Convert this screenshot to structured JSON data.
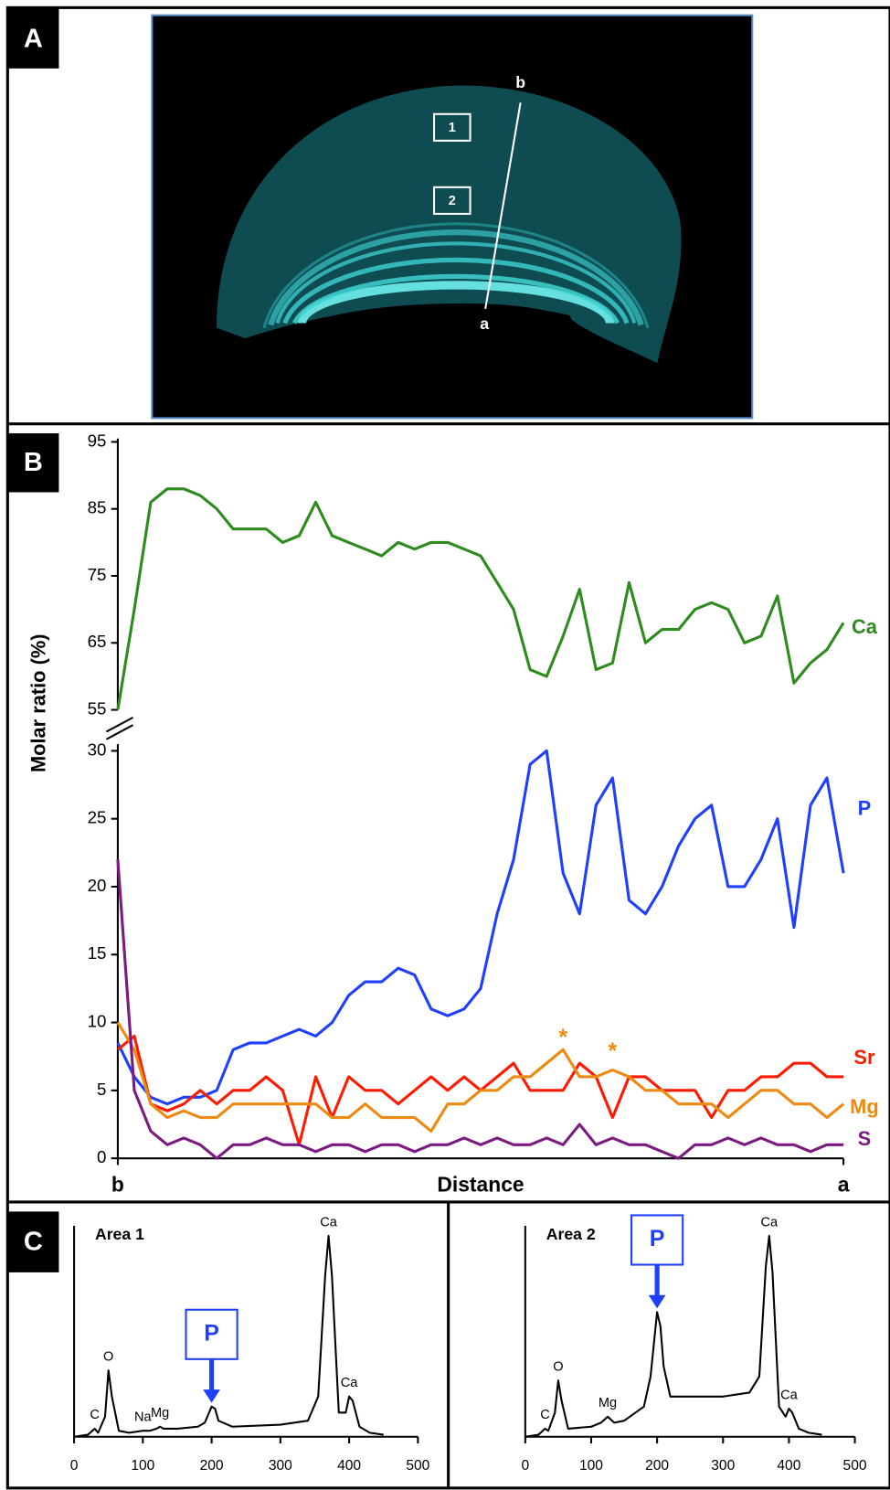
{
  "panel_labels": [
    "A",
    "B",
    "C"
  ],
  "panel_a": {
    "boxes": [
      "1",
      "2"
    ],
    "line_ends": [
      "b",
      "a"
    ]
  },
  "chart_data": [
    {
      "type": "line",
      "xlabel": "Distance",
      "ylabel": "Molar ratio (%)",
      "x": [
        0,
        1,
        2,
        3,
        4,
        5,
        6,
        7,
        8,
        9,
        10,
        11,
        12,
        13,
        14,
        15,
        16,
        17,
        18,
        19,
        20,
        21,
        22,
        23,
        24,
        25,
        26,
        27,
        28,
        29,
        30,
        31,
        32,
        33,
        34,
        35,
        36,
        37,
        38,
        39,
        40,
        41,
        42,
        43,
        44
      ],
      "xlim": [
        0,
        44
      ],
      "xticks": [
        {
          "value": 0,
          "label": "b"
        },
        {
          "value": 44,
          "label": "a"
        }
      ],
      "ylim": [
        0,
        30.5
      ],
      "yticks": [
        0,
        5,
        10,
        15,
        20,
        25,
        30
      ],
      "y2lim": [
        55,
        95.5
      ],
      "y2ticks": [
        55,
        65,
        75,
        85,
        95
      ],
      "series": [
        {
          "name": "Ca",
          "color": "#2e8b1e",
          "axis": "y2",
          "values": [
            55,
            70,
            86,
            88,
            88,
            87,
            85,
            82,
            82,
            82,
            80,
            81,
            86,
            81,
            80,
            79,
            78,
            80,
            79,
            80,
            80,
            79,
            78,
            74,
            70,
            61,
            60,
            66,
            73,
            61,
            62,
            74,
            65,
            67,
            67,
            70,
            71,
            70,
            65,
            66,
            72,
            59,
            62,
            64,
            68
          ]
        },
        {
          "name": "P",
          "color": "#1f3fff",
          "values": [
            8.5,
            6,
            4.5,
            4,
            4.5,
            4.5,
            5,
            8,
            8.5,
            8.5,
            9,
            9.5,
            9,
            10,
            12,
            13,
            13,
            14,
            13.5,
            11,
            10.5,
            11,
            12.5,
            18,
            22,
            29,
            30,
            21,
            18,
            26,
            28,
            19,
            18,
            20,
            23,
            25,
            26,
            20,
            20,
            22,
            25,
            17,
            26,
            28,
            21
          ]
        },
        {
          "name": "Sr",
          "color": "#ff1a00",
          "values": [
            8,
            9,
            4,
            3.5,
            4,
            5,
            4,
            5,
            5,
            6,
            5,
            1,
            6,
            3,
            6,
            5,
            5,
            4,
            5,
            6,
            5,
            6,
            5,
            6,
            7,
            5,
            5,
            5,
            7,
            6,
            3,
            6,
            6,
            5,
            5,
            5,
            3,
            5,
            5,
            6,
            6,
            7,
            7,
            6,
            6
          ]
        },
        {
          "name": "Mg",
          "color": "#ee8a10",
          "values": [
            10,
            8,
            4,
            3,
            3.5,
            3,
            3,
            4,
            4,
            4,
            4,
            4,
            4,
            3,
            3,
            4,
            3,
            3,
            3,
            2,
            4,
            4,
            5,
            5,
            6,
            6,
            7,
            8,
            6,
            6,
            6.5,
            6,
            5,
            5,
            4,
            4,
            4,
            3,
            4,
            5,
            5,
            4,
            4,
            3,
            4
          ]
        },
        {
          "name": "S",
          "color": "#7b1a80",
          "values": [
            22,
            5,
            2,
            1,
            1.5,
            1,
            0,
            1,
            1,
            1.5,
            1,
            1,
            0.5,
            1,
            1,
            0.5,
            1,
            1,
            0.5,
            1,
            1,
            1.5,
            1,
            1.5,
            1,
            1,
            1.5,
            1,
            2.5,
            1,
            1.5,
            1,
            1,
            0.5,
            0,
            1,
            1,
            1.5,
            1,
            1.5,
            1,
            1,
            0.5,
            1,
            1
          ]
        }
      ],
      "annotations": [
        {
          "text": "*",
          "x": 27,
          "y": 8.8,
          "color": "#ee8a10"
        },
        {
          "text": "*",
          "x": 30,
          "y": 7.8,
          "color": "#ee8a10"
        }
      ]
    },
    {
      "type": "line",
      "title": "Area 1",
      "x": [
        0,
        20,
        30,
        35,
        45,
        50,
        55,
        65,
        80,
        100,
        110,
        120,
        125,
        130,
        150,
        180,
        190,
        200,
        205,
        210,
        230,
        300,
        340,
        355,
        365,
        370,
        375,
        385,
        395,
        400,
        405,
        415,
        430,
        450
      ],
      "xlim": [
        0,
        500
      ],
      "xticks": [
        0,
        100,
        200,
        300,
        400,
        500
      ],
      "ylim": [
        0,
        105
      ],
      "series": [
        {
          "color": "#000000",
          "values": [
            0,
            1,
            4,
            2,
            10,
            33,
            20,
            3,
            2,
            3,
            3,
            4,
            5,
            4,
            4,
            5,
            7,
            15,
            14,
            8,
            5,
            6,
            8,
            20,
            80,
            100,
            80,
            12,
            12,
            20,
            18,
            5,
            2,
            1
          ]
        }
      ],
      "annotations": [
        {
          "text": "C",
          "x": 30
        },
        {
          "text": "O",
          "x": 50
        },
        {
          "text": "Na",
          "x": 100
        },
        {
          "text": "Mg",
          "x": 125
        },
        {
          "text": "Ca",
          "x": 370
        },
        {
          "text": "Ca",
          "x": 400
        }
      ],
      "highlight": {
        "text": "P",
        "x": 200,
        "color": "#1f3fff"
      }
    },
    {
      "type": "line",
      "title": "Area 2",
      "x": [
        0,
        20,
        30,
        35,
        45,
        50,
        55,
        65,
        100,
        115,
        125,
        135,
        150,
        180,
        190,
        200,
        205,
        210,
        220,
        300,
        340,
        355,
        365,
        370,
        375,
        385,
        395,
        400,
        405,
        415,
        430,
        450
      ],
      "xlim": [
        0,
        500
      ],
      "xticks": [
        0,
        100,
        200,
        300,
        400,
        500
      ],
      "ylim": [
        0,
        105
      ],
      "series": [
        {
          "color": "#000000",
          "values": [
            0,
            1,
            4,
            3,
            12,
            28,
            18,
            4,
            5,
            7,
            10,
            7,
            8,
            15,
            30,
            62,
            55,
            35,
            20,
            20,
            22,
            30,
            85,
            100,
            82,
            15,
            10,
            14,
            12,
            4,
            2,
            1
          ]
        }
      ],
      "annotations": [
        {
          "text": "C",
          "x": 30
        },
        {
          "text": "O",
          "x": 50
        },
        {
          "text": "Mg",
          "x": 125
        },
        {
          "text": "Ca",
          "x": 370
        },
        {
          "text": "Ca",
          "x": 400
        }
      ],
      "highlight": {
        "text": "P",
        "x": 200,
        "color": "#1f3fff"
      }
    }
  ]
}
